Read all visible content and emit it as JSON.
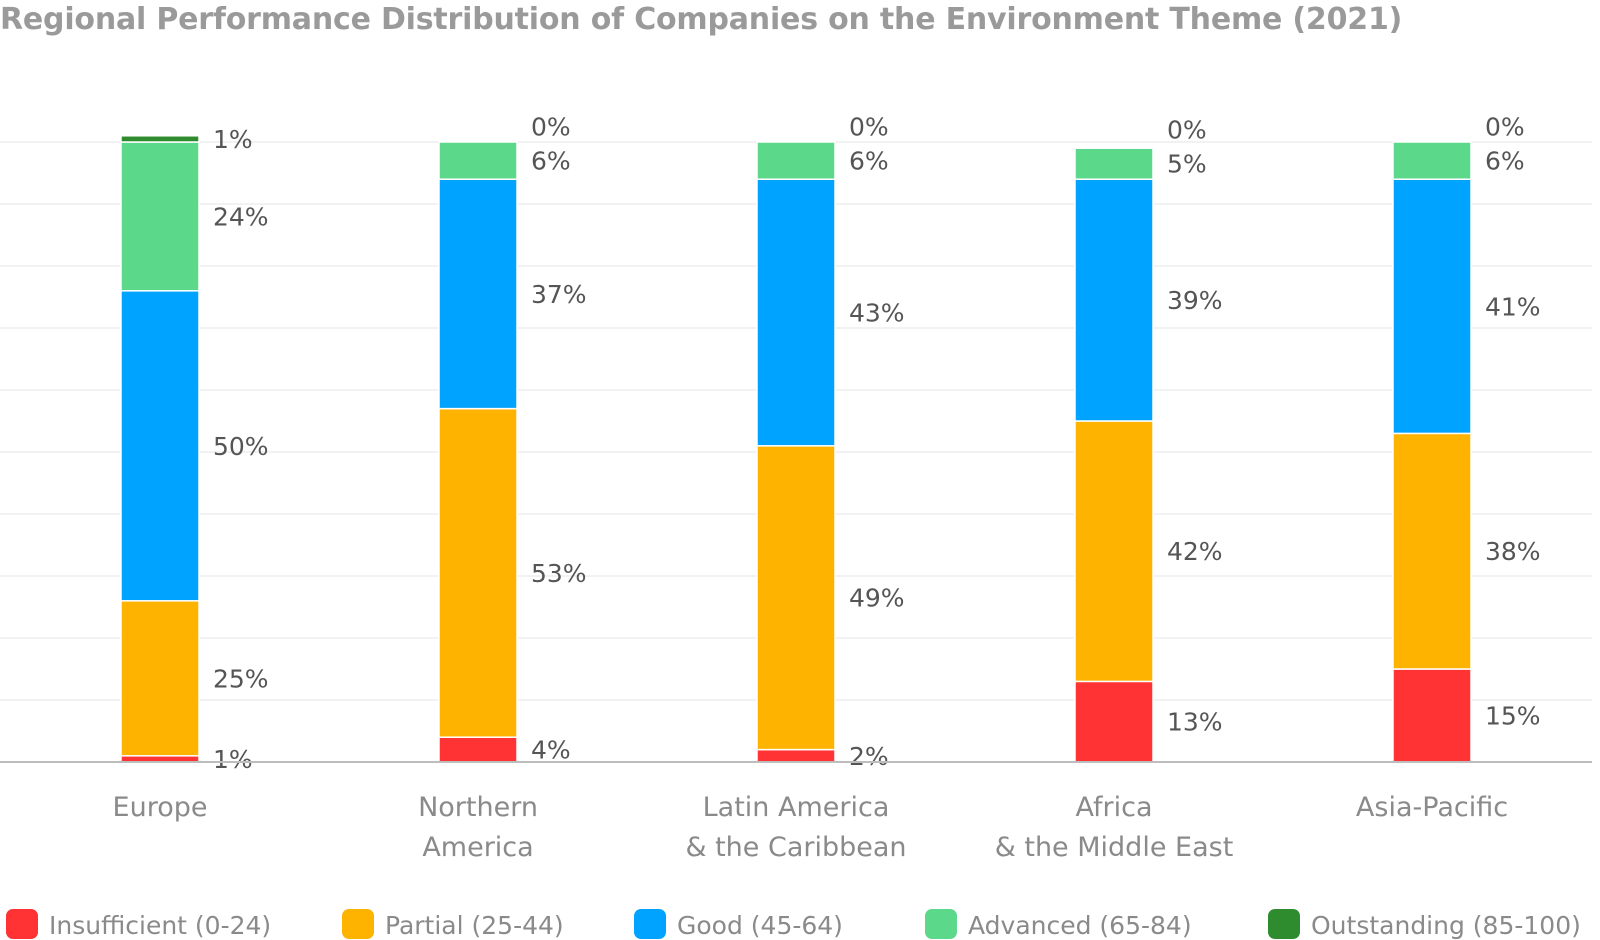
{
  "chart_data": {
    "type": "bar",
    "stacked": true,
    "title": "Regional Performance Distribution of Companies on the Environment Theme (2021)",
    "xlabel": "",
    "ylabel": "",
    "ylim": [
      0,
      100
    ],
    "grid": true,
    "legend_position": "bottom",
    "categories": [
      [
        "Europe"
      ],
      [
        "Northern",
        "America"
      ],
      [
        "Latin America",
        "& the Caribbean"
      ],
      [
        "Africa",
        "& the Middle East"
      ],
      [
        "Asia-Pacific"
      ]
    ],
    "series": [
      {
        "name": "Insufficient (0-24)",
        "color": "#ff3333",
        "values": [
          1,
          4,
          2,
          13,
          15
        ],
        "labels": [
          "1%",
          "4%",
          "2%",
          "13%",
          "15%"
        ]
      },
      {
        "name": "Partial (25-44)",
        "color": "#fdb300",
        "values": [
          25,
          53,
          49,
          42,
          38
        ],
        "labels": [
          "25%",
          "53%",
          "49%",
          "42%",
          "38%"
        ]
      },
      {
        "name": "Good (45-64)",
        "color": "#00a3ff",
        "values": [
          50,
          37,
          43,
          39,
          41
        ],
        "labels": [
          "50%",
          "37%",
          "43%",
          "39%",
          "41%"
        ]
      },
      {
        "name": "Advanced (65-84)",
        "color": "#5bd88a",
        "values": [
          24,
          6,
          6,
          5,
          6
        ],
        "labels": [
          "24%",
          "6%",
          "6%",
          "5%",
          "6%"
        ]
      },
      {
        "name": "Outstanding (85-100)",
        "color": "#2e8b2e",
        "values": [
          1,
          0,
          0,
          0,
          0
        ],
        "labels": [
          "1%",
          "0%",
          "0%",
          "0%",
          "0%"
        ]
      }
    ]
  }
}
